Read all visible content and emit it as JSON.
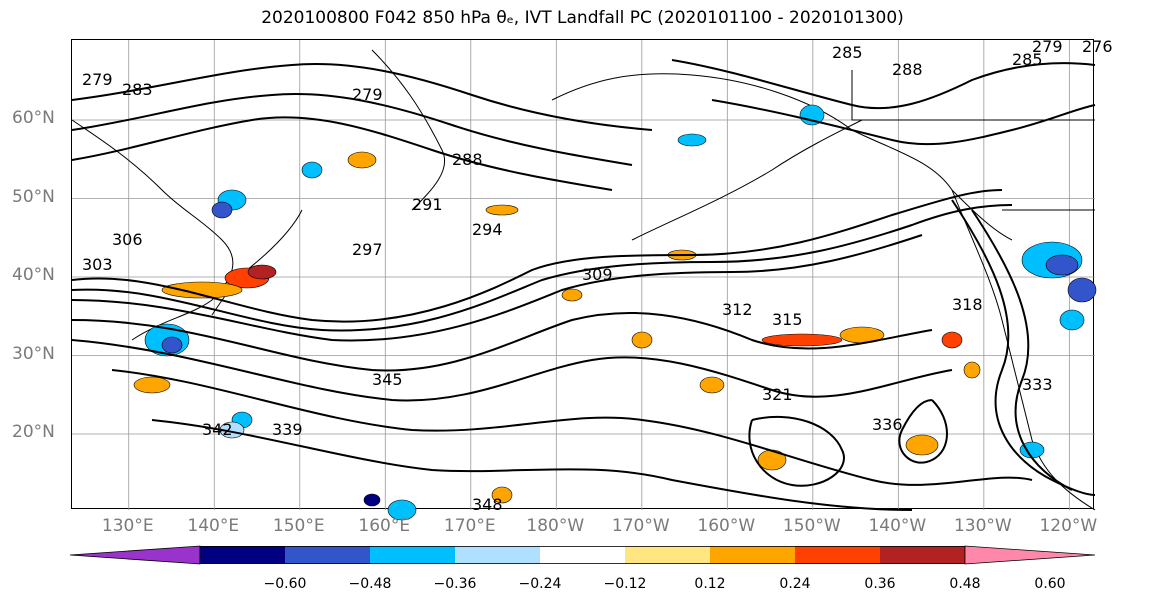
{
  "title": "2020100800 F042 850 hPa θₑ, IVT Landfall PC (2020101100 - 2020101300)",
  "y_axis": {
    "labels": [
      "60°N",
      "50°N",
      "40°N",
      "30°N",
      "20°N"
    ],
    "values": [
      60,
      50,
      40,
      30,
      20
    ]
  },
  "x_axis": {
    "labels": [
      "130°E",
      "140°E",
      "150°E",
      "160°E",
      "170°E",
      "180°W",
      "170°W",
      "160°W",
      "150°W",
      "140°W",
      "130°W",
      "120°W"
    ],
    "values": [
      130,
      140,
      150,
      160,
      170,
      180,
      190,
      200,
      210,
      220,
      230,
      240
    ]
  },
  "contour_labels": [
    "279",
    "283",
    "279",
    "288",
    "291",
    "294",
    "297",
    "285",
    "288",
    "285",
    "279",
    "276",
    "303",
    "306",
    "309",
    "312",
    "315",
    "318",
    "321",
    "333",
    "336",
    "339",
    "342",
    "345",
    "348"
  ],
  "colorbar": {
    "ticks": [
      "−0.60",
      "−0.48",
      "−0.36",
      "−0.24",
      "−0.12",
      "0.12",
      "0.24",
      "0.36",
      "0.48",
      "0.60"
    ],
    "colors": [
      "#9933cc",
      "#000080",
      "#3355cc",
      "#00bfff",
      "#b0e0ff",
      "#ffffff",
      "#ffe680",
      "#ffa500",
      "#ff4000",
      "#b22222",
      "#ff88aa"
    ]
  },
  "shading": {
    "positive_colors": [
      "#ffe680",
      "#ffa500",
      "#ff4000",
      "#b22222"
    ],
    "negative_colors": [
      "#b0e0ff",
      "#00bfff",
      "#3355cc",
      "#000080"
    ]
  }
}
